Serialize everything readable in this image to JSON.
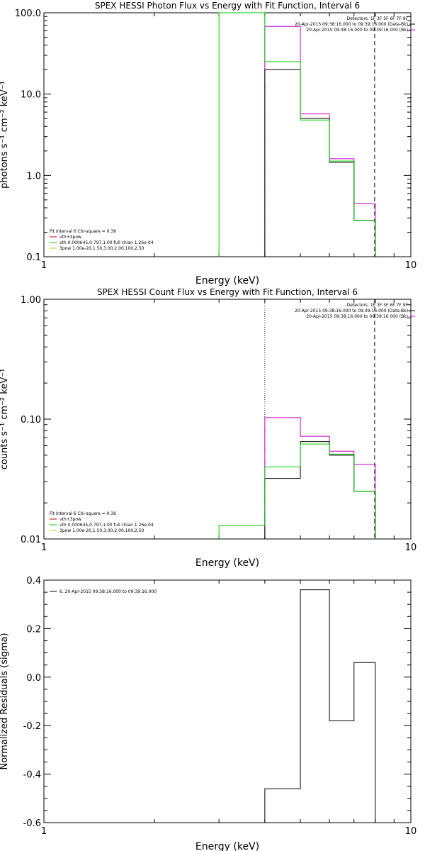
{
  "colors": {
    "model": "#00cc00",
    "data": "#000000",
    "bk": "#cc00cc",
    "vth": "#00cc00",
    "ppow": "#cccc00",
    "sum": "#cc0000"
  },
  "chart_data": [
    {
      "type": "line",
      "title": "SPEX HESSI Photon Flux vs Energy with Fit Function, Interval 6",
      "xlabel": "Energy (keV)",
      "ylabel": "photons s⁻¹ cm⁻² keV⁻¹",
      "x_scale": "log",
      "y_scale": "log",
      "xlim": [
        1,
        10
      ],
      "ylim": [
        0.1,
        100
      ],
      "x_tick_labels": [
        {
          "value": 1,
          "label": "1"
        },
        {
          "value": 10,
          "label": "10"
        }
      ],
      "y_tick_labels": [
        {
          "value": 0.1,
          "label": "0.1"
        },
        {
          "value": 1,
          "label": "1.0"
        },
        {
          "value": 10,
          "label": "10.0"
        },
        {
          "value": 100,
          "label": "100.0"
        }
      ],
      "header_lines": [
        "Detectors: 1F 3F 5F 6F 7F 9F",
        "20-Apr-2015 09:38:16.000 to 09:39:16.000 (Data-Bk)",
        "20-Apr-2015 09:38:16.000 to 09:39:16.000 (Bk)"
      ],
      "legend": {
        "header": "Fit Interval 6   Chi-square = 0.36",
        "entries": [
          {
            "label": "vth+3pow",
            "color_key": "sum"
          },
          {
            "label": "vth 0.000645,0.797,1.00  full chian 1.26e-04",
            "color_key": "vth"
          },
          {
            "label": "3pow 1.00e-20,1.50,3.00,2.00,100,2.50",
            "color_key": "ppow"
          }
        ]
      },
      "vlines": [
        {
          "x": 4.0,
          "style": "dotted"
        },
        {
          "x": 7.97,
          "style": "dashed"
        }
      ],
      "series": [
        {
          "kind": "data",
          "color_key": "data",
          "edges": [
            4.0,
            5.0,
            6.0,
            7.0,
            8.0
          ],
          "values": [
            20.0,
            5.0,
            1.45,
            0.28
          ]
        },
        {
          "kind": "bk",
          "color_key": "bk",
          "edges": [
            4.0,
            5.0,
            6.0,
            7.0,
            8.0
          ],
          "values": [
            68.0,
            5.7,
            1.6,
            0.45
          ]
        },
        {
          "kind": "model",
          "color_key": "model",
          "edges": [
            3.0,
            4.0,
            5.0,
            6.0,
            7.0,
            8.0
          ],
          "values": [
            100.0,
            25.0,
            4.8,
            1.5,
            0.28
          ]
        }
      ]
    },
    {
      "type": "line",
      "title": "SPEX HESSI Count Flux vs Energy with Fit Function, Interval 6",
      "xlabel": "Energy (keV)",
      "ylabel": "counts s⁻¹ cm⁻² keV⁻¹",
      "x_scale": "log",
      "y_scale": "log",
      "xlim": [
        1,
        10
      ],
      "ylim": [
        0.01,
        1
      ],
      "x_tick_labels": [
        {
          "value": 1,
          "label": "1"
        },
        {
          "value": 10,
          "label": "10"
        }
      ],
      "y_tick_labels": [
        {
          "value": 0.01,
          "label": "0.01"
        },
        {
          "value": 0.1,
          "label": "0.10"
        },
        {
          "value": 1,
          "label": "1.00"
        }
      ],
      "header_lines": [
        "Detectors: 1F 3F 5F 6F 7F 9F",
        "20-Apr-2015 09:38:16.000 to 09:39:16.000 (Data-Bk)",
        "20-Apr-2015 09:38:16.000 to 09:39:16.000 (Bk)"
      ],
      "legend": {
        "header": "Fit Interval 6   Chi-square = 0.36",
        "entries": [
          {
            "label": "vth+3pow",
            "color_key": "sum"
          },
          {
            "label": "vth 0.000645,0.797,1.00  full chian 1.26e-04",
            "color_key": "vth"
          },
          {
            "label": "3pow 1.00e-20,1.50,3.00,2.00,100,2.50",
            "color_key": "ppow"
          }
        ]
      },
      "vlines": [
        {
          "x": 4.0,
          "style": "dotted"
        },
        {
          "x": 7.97,
          "style": "dashed"
        }
      ],
      "series": [
        {
          "kind": "data",
          "color_key": "data",
          "edges": [
            4.0,
            5.0,
            6.0,
            7.0,
            8.0
          ],
          "values": [
            0.032,
            0.065,
            0.05,
            0.025
          ]
        },
        {
          "kind": "bk",
          "color_key": "bk",
          "edges": [
            4.0,
            5.0,
            6.0,
            7.0,
            8.0
          ],
          "values": [
            0.103,
            0.072,
            0.054,
            0.042
          ]
        },
        {
          "kind": "model",
          "color_key": "model",
          "edges": [
            3.0,
            4.0,
            5.0,
            6.0,
            7.0,
            8.0
          ],
          "values": [
            0.013,
            0.04,
            0.062,
            0.051,
            0.025
          ]
        }
      ]
    },
    {
      "type": "line",
      "title": "",
      "xlabel": "Energy (keV)",
      "ylabel": "Normalized Residuals (sigma)",
      "x_scale": "log",
      "y_scale": "linear",
      "xlim": [
        1,
        10
      ],
      "ylim": [
        -0.6,
        0.4
      ],
      "x_tick_labels": [
        {
          "value": 1,
          "label": "1"
        },
        {
          "value": 10,
          "label": "10"
        }
      ],
      "y_tick_labels": [
        {
          "value": -0.6,
          "label": "-0.6"
        },
        {
          "value": -0.4,
          "label": "-0.4"
        },
        {
          "value": -0.2,
          "label": "-0.2"
        },
        {
          "value": 0.0,
          "label": "0.0"
        },
        {
          "value": 0.2,
          "label": "0.2"
        },
        {
          "value": 0.4,
          "label": "0.4"
        }
      ],
      "header_lines": [],
      "legend": {
        "header": "",
        "entries": [
          {
            "label": "6. 20-Apr-2015 09:38:16.000 to 09:39:16.000",
            "color_key": "data"
          }
        ]
      },
      "vlines": [],
      "series": [
        {
          "kind": "residuals",
          "color_key": "data",
          "edges": [
            4.0,
            5.0,
            6.0,
            7.0,
            8.0
          ],
          "values": [
            -0.46,
            0.36,
            -0.18,
            0.06
          ],
          "baseline": -0.6
        }
      ]
    }
  ]
}
